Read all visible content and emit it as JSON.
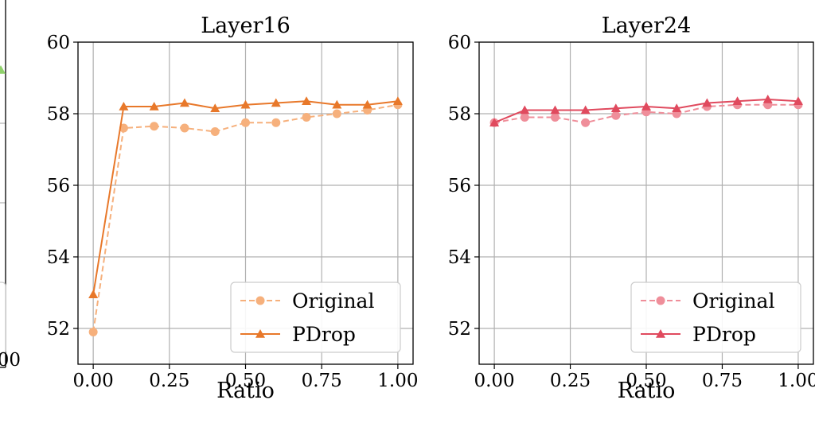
{
  "chart_data": [
    {
      "type": "line",
      "partial": true,
      "title": "",
      "xlabel": "",
      "ylabel": "",
      "x_tick_labels": [
        "00"
      ],
      "series": [
        {
          "color": "#8fd16b",
          "marker": "triangle",
          "values": []
        }
      ]
    },
    {
      "type": "line",
      "title": "Layer16",
      "xlabel": "Ratio",
      "ylabel": "",
      "xlim": [
        -0.05,
        1.05
      ],
      "ylim": [
        51.0,
        60.0
      ],
      "x_tick_labels": [
        "0.00",
        "0.25",
        "0.50",
        "0.75",
        "1.00"
      ],
      "y_tick_labels": [
        "52",
        "54",
        "56",
        "58",
        "60"
      ],
      "grid": true,
      "legend": "bottom-right",
      "x": [
        0.0,
        0.1,
        0.2,
        0.3,
        0.4,
        0.5,
        0.6,
        0.7,
        0.8,
        0.9,
        1.0
      ],
      "series": [
        {
          "name": "Original",
          "color": "#f6b07c",
          "marker": "circle",
          "style": "dashed",
          "values": [
            51.9,
            57.6,
            57.65,
            57.6,
            57.5,
            57.75,
            57.75,
            57.9,
            58.0,
            58.1,
            58.25
          ]
        },
        {
          "name": "PDrop",
          "color": "#e8782a",
          "marker": "triangle",
          "style": "solid",
          "values": [
            52.95,
            58.2,
            58.2,
            58.3,
            58.15,
            58.25,
            58.3,
            58.35,
            58.25,
            58.25,
            58.35
          ]
        }
      ]
    },
    {
      "type": "line",
      "title": "Layer24",
      "xlabel": "Ratio",
      "ylabel": "",
      "xlim": [
        -0.05,
        1.05
      ],
      "ylim": [
        51.0,
        60.0
      ],
      "x_tick_labels": [
        "0.00",
        "0.25",
        "0.50",
        "0.75",
        "1.00"
      ],
      "y_tick_labels": [
        "52",
        "54",
        "56",
        "58",
        "60"
      ],
      "grid": true,
      "legend": "bottom-right",
      "x": [
        0.0,
        0.1,
        0.2,
        0.3,
        0.4,
        0.5,
        0.6,
        0.7,
        0.8,
        0.9,
        1.0
      ],
      "series": [
        {
          "name": "Original",
          "color": "#ef8e9a",
          "marker": "circle",
          "style": "dashed",
          "values": [
            57.75,
            57.9,
            57.9,
            57.75,
            57.95,
            58.05,
            58.0,
            58.2,
            58.25,
            58.25,
            58.25
          ]
        },
        {
          "name": "PDrop",
          "color": "#e04a5e",
          "marker": "triangle",
          "style": "solid",
          "values": [
            57.75,
            58.1,
            58.1,
            58.1,
            58.15,
            58.2,
            58.15,
            58.3,
            58.35,
            58.4,
            58.35
          ]
        }
      ]
    }
  ]
}
